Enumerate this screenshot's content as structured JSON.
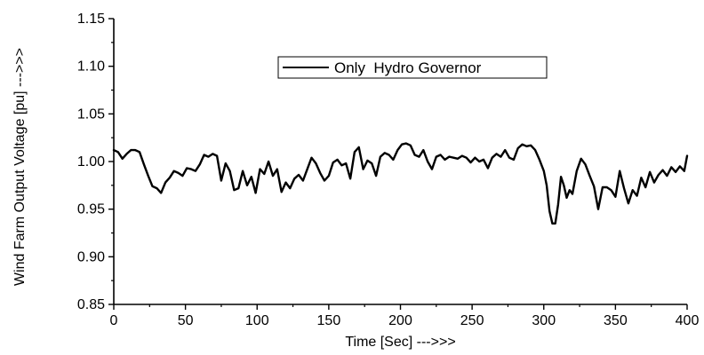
{
  "chart_data": {
    "type": "line",
    "title": "",
    "xlabel": "Time [Sec] --->>>",
    "ylabel": "Wind Farm Output Voltage [pu] --->>>",
    "xlim": [
      0,
      400
    ],
    "ylim": [
      0.85,
      1.15
    ],
    "xticks": [
      "0",
      "50",
      "100",
      "150",
      "200",
      "250",
      "300",
      "350",
      "400"
    ],
    "yticks": [
      "0.85",
      "0.90",
      "0.95",
      "1.00",
      "1.05",
      "1.10",
      "1.15"
    ],
    "grid": false,
    "legend_position": "top-right",
    "series": [
      {
        "name": "Only  Hydro Governor",
        "color": "#000000",
        "x": [
          0,
          3,
          6,
          9,
          12,
          15,
          18,
          21,
          24,
          27,
          30,
          33,
          36,
          39,
          42,
          45,
          48,
          51,
          54,
          57,
          60,
          63,
          66,
          69,
          72,
          75,
          78,
          81,
          84,
          87,
          90,
          93,
          96,
          99,
          102,
          105,
          108,
          111,
          114,
          117,
          120,
          123,
          126,
          129,
          132,
          135,
          138,
          141,
          144,
          147,
          150,
          153,
          156,
          159,
          162,
          165,
          168,
          171,
          174,
          177,
          180,
          183,
          186,
          189,
          192,
          195,
          198,
          201,
          204,
          207,
          210,
          213,
          216,
          219,
          222,
          225,
          228,
          231,
          234,
          237,
          240,
          243,
          246,
          249,
          252,
          255,
          258,
          261,
          264,
          267,
          270,
          273,
          276,
          279,
          282,
          285,
          288,
          291,
          294,
          297,
          300,
          302,
          304,
          306,
          308,
          310,
          312,
          314,
          316,
          318,
          320,
          323,
          326,
          329,
          332,
          335,
          338,
          341,
          344,
          347,
          350,
          353,
          356,
          359,
          362,
          365,
          368,
          371,
          374,
          377,
          380,
          383,
          386,
          389,
          392,
          395,
          398,
          400
        ],
        "y": [
          1.012,
          1.01,
          1.003,
          1.008,
          1.012,
          1.012,
          1.01,
          0.997,
          0.985,
          0.974,
          0.972,
          0.967,
          0.978,
          0.983,
          0.99,
          0.988,
          0.985,
          0.993,
          0.992,
          0.99,
          0.997,
          1.007,
          1.005,
          1.008,
          1.006,
          0.98,
          0.998,
          0.99,
          0.97,
          0.972,
          0.99,
          0.975,
          0.984,
          0.967,
          0.992,
          0.987,
          1.0,
          0.985,
          0.992,
          0.968,
          0.978,
          0.972,
          0.982,
          0.986,
          0.98,
          0.992,
          1.004,
          0.998,
          0.988,
          0.98,
          0.985,
          0.999,
          1.002,
          0.996,
          0.998,
          0.982,
          1.01,
          1.015,
          0.992,
          1.001,
          0.998,
          0.985,
          1.005,
          1.009,
          1.007,
          1.002,
          1.012,
          1.018,
          1.019,
          1.017,
          1.007,
          1.005,
          1.012,
          1.0,
          0.992,
          1.005,
          1.007,
          1.002,
          1.005,
          1.004,
          1.003,
          1.006,
          1.004,
          0.999,
          1.004,
          1.0,
          1.002,
          0.993,
          1.004,
          1.008,
          1.005,
          1.012,
          1.004,
          1.002,
          1.014,
          1.018,
          1.016,
          1.017,
          1.012,
          1.002,
          0.99,
          0.975,
          0.948,
          0.935,
          0.935,
          0.955,
          0.984,
          0.975,
          0.962,
          0.97,
          0.966,
          0.99,
          1.003,
          0.997,
          0.985,
          0.974,
          0.95,
          0.973,
          0.973,
          0.97,
          0.963,
          0.99,
          0.972,
          0.956,
          0.97,
          0.964,
          0.983,
          0.973,
          0.989,
          0.978,
          0.986,
          0.991,
          0.985,
          0.994,
          0.989,
          0.995,
          0.99,
          1.006
        ]
      }
    ]
  }
}
